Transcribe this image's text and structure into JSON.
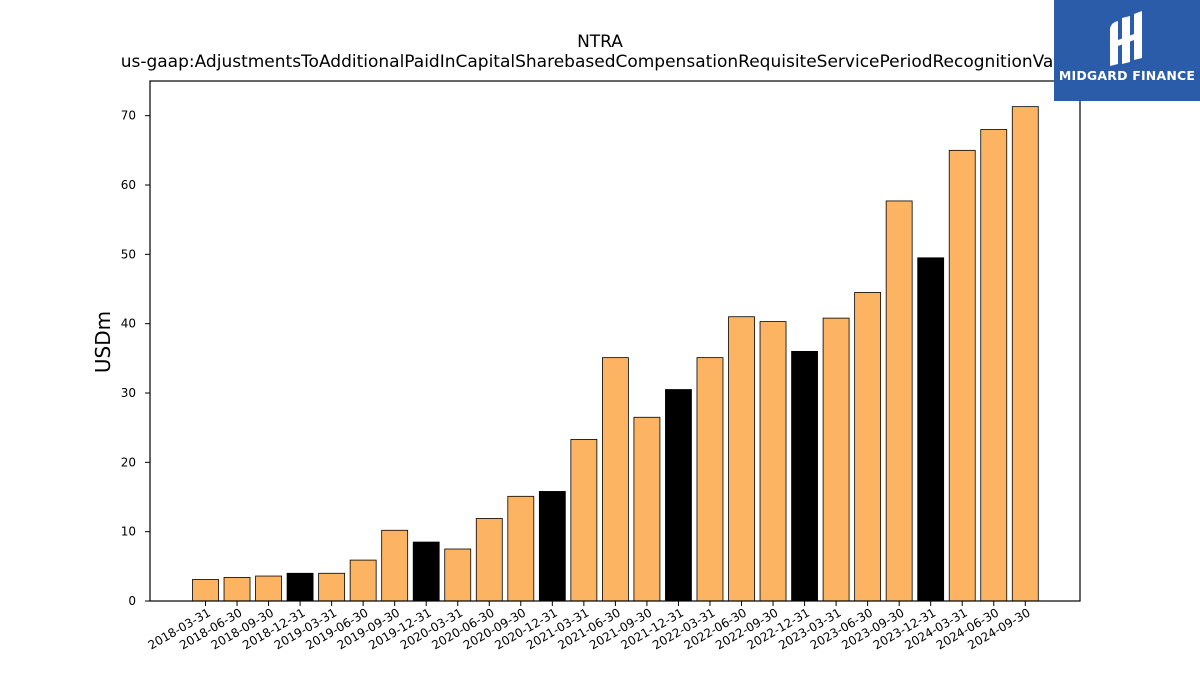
{
  "chart_data": {
    "type": "bar",
    "title": "NTRA",
    "subtitle": "us-gaap:AdjustmentsToAdditionalPaidInCapitalSharebasedCompensationRequisiteServicePeriodRecognitionValue",
    "xlabel": "",
    "ylabel": "USDm",
    "ylim": [
      0,
      75
    ],
    "yticks": [
      0,
      10,
      20,
      30,
      40,
      50,
      60,
      70
    ],
    "grid": false,
    "categories": [
      "2018-03-31",
      "2018-06-30",
      "2018-09-30",
      "2018-12-31",
      "2019-03-31",
      "2019-06-30",
      "2019-09-30",
      "2019-12-31",
      "2020-03-31",
      "2020-06-30",
      "2020-09-30",
      "2020-12-31",
      "2021-03-31",
      "2021-06-30",
      "2021-09-30",
      "2021-12-31",
      "2022-03-31",
      "2022-06-30",
      "2022-09-30",
      "2022-12-31",
      "2023-03-31",
      "2023-06-30",
      "2023-09-30",
      "2023-12-31",
      "2024-03-31",
      "2024-06-30",
      "2024-09-30"
    ],
    "values": [
      3.1,
      3.4,
      3.6,
      4.0,
      4.0,
      5.9,
      10.2,
      8.5,
      7.5,
      11.9,
      15.1,
      15.8,
      23.3,
      35.1,
      26.5,
      30.5,
      35.1,
      41.0,
      40.3,
      36.0,
      40.8,
      44.5,
      57.7,
      49.5,
      65.0,
      68.0,
      71.3
    ],
    "colors": {
      "default": "#fdb462",
      "year_end": "#000000",
      "edge": "#000000"
    }
  },
  "branding": {
    "logo_text": "MIDGARD FINANCE",
    "logo_color": "#2a5caa"
  }
}
